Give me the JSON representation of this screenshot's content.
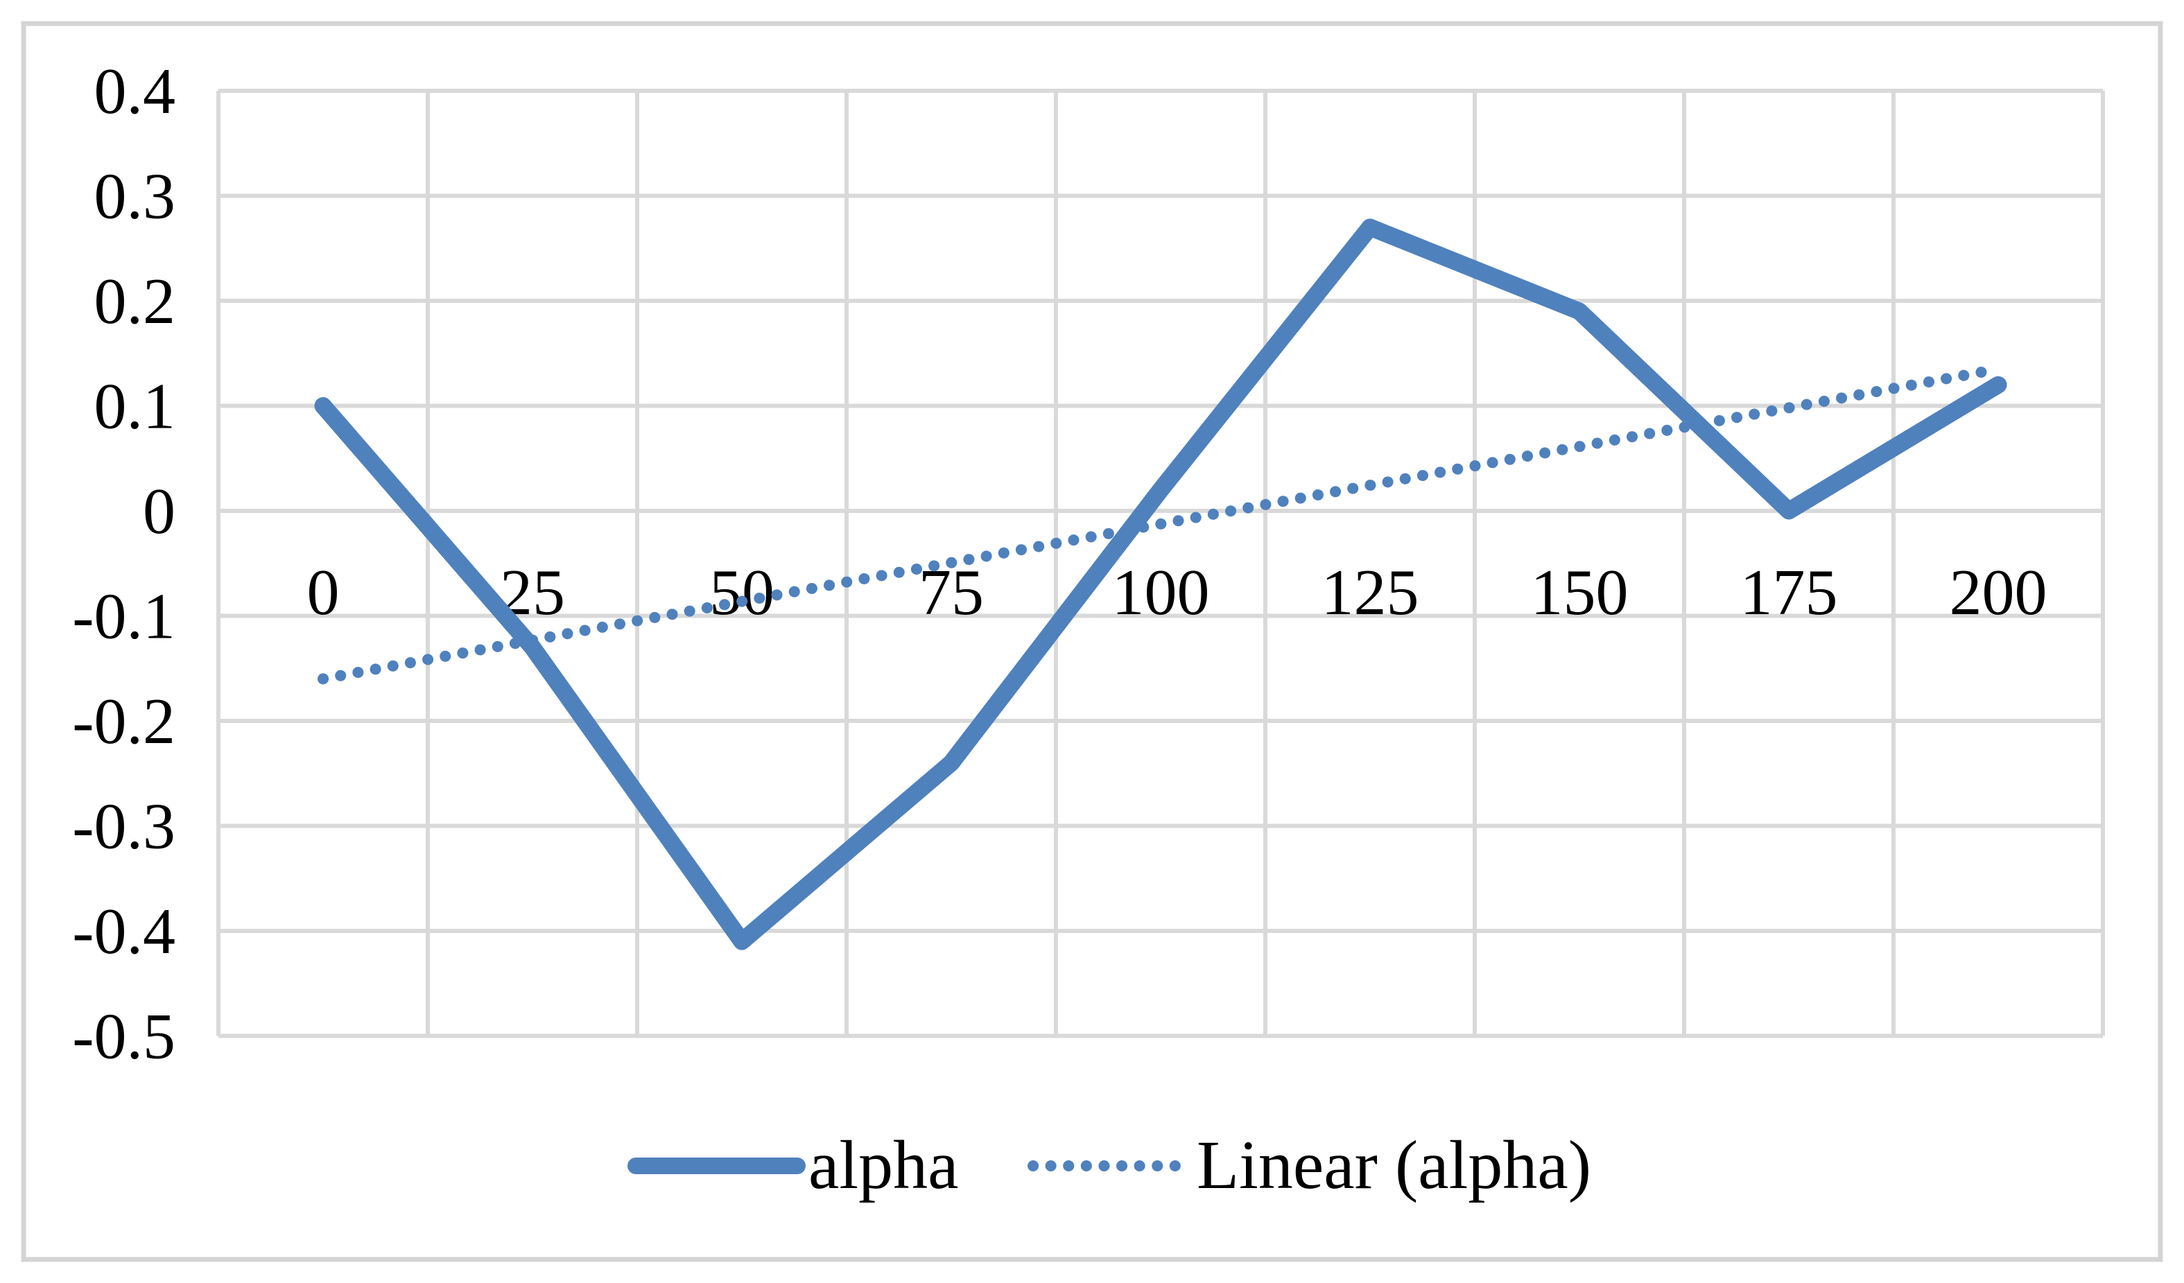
{
  "chart_data": {
    "type": "line",
    "title": "",
    "xlabel": "",
    "ylabel": "",
    "categories": [
      "0",
      "25",
      "50",
      "75",
      "100",
      "125",
      "150",
      "175",
      "200"
    ],
    "x_numeric": [
      0,
      25,
      50,
      75,
      100,
      125,
      150,
      175,
      200
    ],
    "series": [
      {
        "name": "alpha",
        "style": "solid",
        "values": [
          0.1,
          -0.13,
          -0.41,
          -0.24,
          0.02,
          0.27,
          0.19,
          0,
          0.12
        ]
      },
      {
        "name": "Linear (alpha)",
        "style": "dotted-trendline",
        "trend_start_value": -0.16,
        "trend_end_value": 0.135
      }
    ],
    "ylim": [
      -0.5,
      0.4
    ],
    "ytick_step": 0.1,
    "ytick_labels": [
      "0.4",
      "0.3",
      "0.2",
      "0.1",
      "0",
      "-0.1",
      "-0.2",
      "-0.3",
      "-0.4",
      "-0.5"
    ],
    "xtick_row_position": "between 0 and -0.1 gridlines, baseline on -0.1 line",
    "grid": true,
    "legend_position": "bottom-center"
  },
  "legend": {
    "alpha_label": "alpha",
    "linear_label": "Linear (alpha)"
  },
  "colors": {
    "series_blue": "#4F81BD",
    "gridline": "#D9D9D9",
    "frame": "#D4D4D4",
    "text": "#000000",
    "background": "#FFFFFF"
  }
}
